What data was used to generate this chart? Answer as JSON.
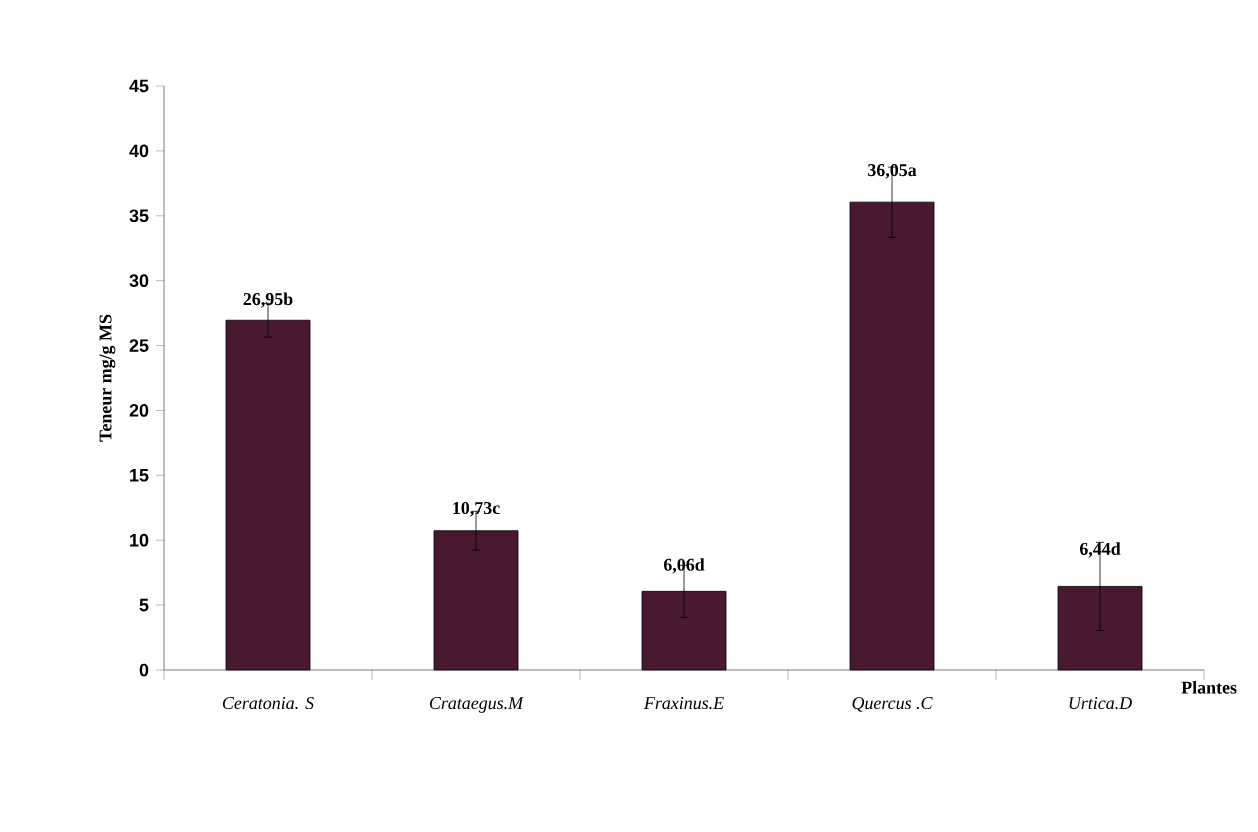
{
  "chart_data": {
    "type": "bar",
    "xlabel": "Plantes",
    "ylabel": "Teneur mg/g MS",
    "categories": [
      "*Ceratonia. S*",
      "*Crataegus.M*",
      "*Fraxinus.E*",
      "*Quercus .C*",
      "*Urtica.D*"
    ],
    "values": [
      26.95,
      10.73,
      6.06,
      36.05,
      6.44
    ],
    "errors": [
      1.3,
      1.5,
      2,
      2.7,
      3.4
    ],
    "value_labels": [
      "26,95b",
      "10,73c",
      "6,06d",
      "36,05a",
      "6,44d"
    ],
    "color": "#4a1830",
    "ylim": [
      0,
      45
    ],
    "yticks": [
      0,
      5,
      10,
      15,
      20,
      25,
      30,
      35,
      40,
      45
    ],
    "grid": false
  }
}
